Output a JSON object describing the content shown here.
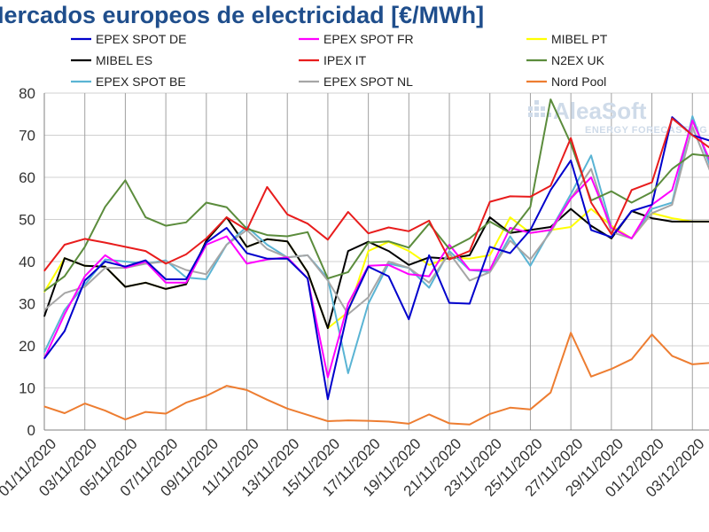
{
  "chart_data": {
    "type": "line",
    "title": "Mercados europeos de electricidad [€/MWh]",
    "watermark": {
      "brand": "AleaSoft",
      "tagline": "ENERGY FORECASTING"
    },
    "ylim": [
      0,
      80
    ],
    "yticks": [
      0,
      10,
      20,
      30,
      40,
      50,
      60,
      70,
      80
    ],
    "grid": true,
    "legend_position": "top",
    "x": [
      "01/11/2020",
      "02/11/2020",
      "03/11/2020",
      "04/11/2020",
      "05/11/2020",
      "06/11/2020",
      "07/11/2020",
      "08/11/2020",
      "09/11/2020",
      "10/11/2020",
      "11/11/2020",
      "12/11/2020",
      "13/11/2020",
      "14/11/2020",
      "15/11/2020",
      "16/11/2020",
      "17/11/2020",
      "18/11/2020",
      "19/11/2020",
      "20/11/2020",
      "21/11/2020",
      "22/11/2020",
      "23/11/2020",
      "24/11/2020",
      "25/11/2020",
      "26/11/2020",
      "27/11/2020",
      "28/11/2020",
      "29/11/2020",
      "30/11/2020",
      "01/12/2020",
      "02/12/2020",
      "03/12/2020",
      "04/12/2020"
    ],
    "xtick_labels": [
      "01/11/2020",
      "03/11/2020",
      "05/11/2020",
      "07/11/2020",
      "09/11/2020",
      "11/11/2020",
      "13/11/2020",
      "15/11/2020",
      "17/11/2020",
      "19/11/2020",
      "21/11/2020",
      "23/11/2020",
      "25/11/2020",
      "27/11/2020",
      "29/11/2020",
      "01/12/2020",
      "03/12/2020"
    ],
    "series": [
      {
        "name": "MIBEL PT",
        "color": "#ffff00",
        "values": [
          32.8,
          40.8,
          39.0,
          38.8,
          34.0,
          35.0,
          33.5,
          34.6,
          45.0,
          50.5,
          43.5,
          45.3,
          44.8,
          37.5,
          24.2,
          28.0,
          42.5,
          44.7,
          42.5,
          39.2,
          41.0,
          40.7,
          41.5,
          50.5,
          46.8,
          47.5,
          48.2,
          52.5,
          48.5,
          45.5,
          51.5,
          50.3,
          49.5,
          49.5
        ]
      },
      {
        "name": "MIBEL ES",
        "color": "#000000",
        "values": [
          27.0,
          40.8,
          39.0,
          38.8,
          34.0,
          35.0,
          33.5,
          34.6,
          45.0,
          50.5,
          43.5,
          45.3,
          44.8,
          37.5,
          24.2,
          42.5,
          44.7,
          42.5,
          39.2,
          41.0,
          40.7,
          41.5,
          50.5,
          46.8,
          47.5,
          48.2,
          52.5,
          48.5,
          45.5,
          52.0,
          50.3,
          49.5,
          49.5,
          49.5
        ]
      },
      {
        "name": "EPEX SPOT BE",
        "color": "#5ab4d4",
        "values": [
          18.5,
          28.5,
          34.5,
          40.5,
          40.0,
          39.5,
          40.3,
          36.2,
          35.8,
          44.0,
          48.3,
          44.0,
          41.0,
          41.5,
          36.0,
          13.5,
          30.0,
          39.5,
          38.5,
          33.8,
          42.5,
          38.0,
          37.5,
          46.0,
          39.0,
          47.5,
          56.0,
          65.2,
          48.0,
          45.5,
          52.5,
          54.0,
          74.5,
          61.0
        ]
      },
      {
        "name": "EPEX SPOT NL",
        "color": "#a6a6a6",
        "values": [
          28.5,
          32.5,
          34.0,
          38.5,
          38.5,
          39.5,
          40.0,
          38.0,
          37.0,
          44.0,
          47.5,
          43.0,
          41.0,
          41.5,
          35.5,
          27.5,
          31.5,
          40.0,
          38.5,
          35.0,
          42.0,
          35.5,
          37.5,
          45.0,
          40.5,
          47.0,
          55.0,
          62.0,
          47.0,
          45.5,
          51.5,
          53.5,
          72.0,
          60.0
        ]
      },
      {
        "name": "EPEX SPOT FR",
        "color": "#ff00ff",
        "values": [
          17.0,
          27.5,
          36.5,
          41.5,
          38.5,
          40.0,
          35.0,
          35.0,
          44.0,
          46.0,
          39.5,
          40.5,
          41.0,
          36.0,
          12.5,
          30.0,
          39.0,
          39.2,
          37.0,
          36.5,
          44.0,
          38.0,
          38.0,
          48.0,
          46.8,
          47.5,
          55.0,
          60.0,
          48.0,
          45.5,
          53.5,
          57.0,
          73.5,
          62.5
        ]
      },
      {
        "name": "EPEX SPOT DE",
        "color": "#0000cc",
        "values": [
          17.0,
          23.5,
          35.5,
          40.0,
          38.8,
          40.3,
          35.8,
          35.8,
          44.5,
          48.0,
          42.0,
          40.7,
          40.7,
          36.0,
          7.3,
          28.5,
          38.8,
          36.5,
          26.3,
          41.5,
          30.2,
          30.0,
          43.5,
          42.0,
          47.5,
          57.0,
          64.0,
          47.5,
          45.8,
          52.0,
          53.5,
          74.3,
          70.0,
          68.5
        ]
      },
      {
        "name": "N2EX UK",
        "color": "#5b8c3c",
        "values": [
          33.0,
          36.5,
          43.5,
          53.0,
          59.3,
          50.5,
          48.5,
          49.3,
          54.0,
          52.9,
          47.8,
          46.3,
          46.0,
          47.0,
          36.0,
          37.5,
          44.5,
          44.8,
          43.3,
          49.0,
          43.0,
          45.5,
          49.5,
          46.8,
          53.0,
          78.5,
          68.0,
          54.5,
          56.7,
          54.0,
          56.5,
          62.0,
          65.5,
          65.0
        ]
      },
      {
        "name": "IPEX IT",
        "color": "#e81c1c",
        "values": [
          37.8,
          44.0,
          45.4,
          44.5,
          43.5,
          42.5,
          39.5,
          41.7,
          45.5,
          50.5,
          47.5,
          57.7,
          51.2,
          49.0,
          45.2,
          51.8,
          46.7,
          48.1,
          47.2,
          49.7,
          40.5,
          42.5,
          54.2,
          55.5,
          55.4,
          58.0,
          69.3,
          54.0,
          46.5,
          57.0,
          58.8,
          74.0,
          70.0,
          66.5
        ]
      },
      {
        "name": "Nord Pool",
        "color": "#ed7d31",
        "values": [
          5.6,
          4.0,
          6.3,
          4.6,
          2.5,
          4.3,
          3.9,
          6.5,
          8.1,
          10.5,
          9.5,
          7.2,
          5.1,
          3.6,
          2.1,
          2.3,
          2.2,
          2.0,
          1.5,
          3.7,
          1.6,
          1.3,
          3.8,
          5.3,
          4.9,
          8.9,
          23.1,
          12.7,
          14.5,
          16.8,
          22.7,
          17.6,
          15.6,
          16.0
        ]
      }
    ]
  },
  "legend": [
    {
      "name": "EPEX SPOT DE",
      "color": "#0000cc"
    },
    {
      "name": "EPEX SPOT FR",
      "color": "#ff00ff"
    },
    {
      "name": "MIBEL PT",
      "color": "#ffff00"
    },
    {
      "name": "MIBEL ES",
      "color": "#000000"
    },
    {
      "name": "IPEX IT",
      "color": "#e81c1c"
    },
    {
      "name": "N2EX UK",
      "color": "#5b8c3c"
    },
    {
      "name": "EPEX SPOT BE",
      "color": "#5ab4d4"
    },
    {
      "name": "EPEX SPOT NL",
      "color": "#a6a6a6"
    },
    {
      "name": "Nord Pool",
      "color": "#ed7d31"
    }
  ]
}
